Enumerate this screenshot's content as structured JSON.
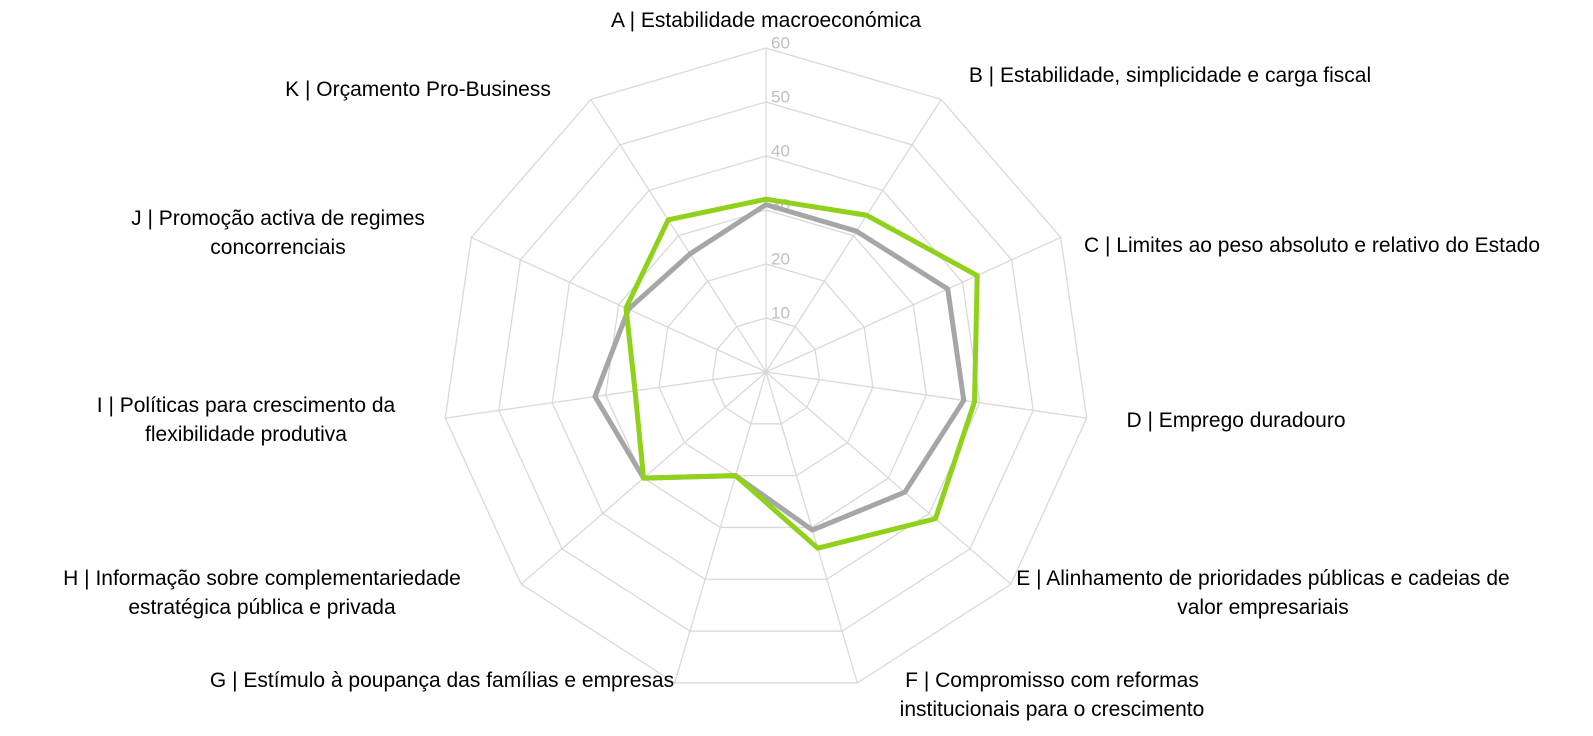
{
  "chart_data": {
    "type": "radar",
    "categories": [
      "A | Estabilidade macroeconómica",
      "B | Estabilidade, simplicidade e carga fiscal",
      "C | Limites ao peso absoluto e relativo do Estado",
      "D | Emprego duradouro",
      "E | Alinhamento de prioridades públicas e cadeias de valor empresariais",
      "F | Compromisso com reformas institucionais para o crescimento",
      "G | Estímulo à poupança das famílias e empresas",
      "H | Informação sobre complementariedade estratégica pública e privada",
      "I | Políticas para crescimento da flexibilidade produtiva",
      "J | Promoção activa de regimes concorrenciais",
      "K | Orçamento Pro-Business"
    ],
    "series": [
      {
        "color": "#a6a6a6",
        "values": [
          31,
          31,
          37,
          37,
          34,
          30.5,
          20,
          30,
          32,
          28,
          26
        ]
      },
      {
        "color": "#8fd11b",
        "values": [
          32,
          34.5,
          43,
          39,
          41.5,
          34,
          20,
          30,
          24.5,
          28.5,
          33.5
        ]
      }
    ],
    "ylim": [
      0,
      60
    ],
    "yticks": [
      10,
      20,
      30,
      40,
      50,
      60
    ],
    "grid": true
  }
}
